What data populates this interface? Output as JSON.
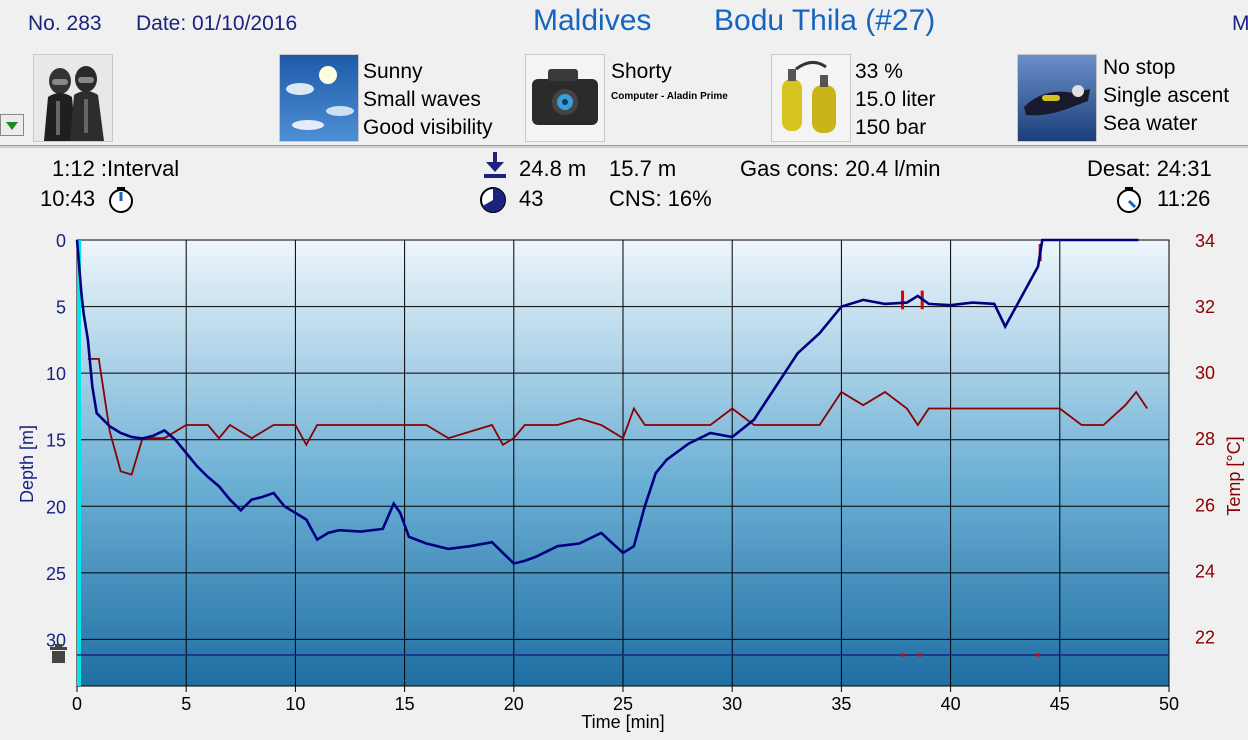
{
  "header": {
    "dive_no": "No. 283",
    "date": "Date: 01/10/2016",
    "location": "Maldives",
    "site": "Bodu Thila (#27)",
    "cut_text": "M"
  },
  "icons": {
    "divers": "divers-icon",
    "weather": "weather-icon",
    "equipment": "dive-computer-icon",
    "tank": "tank-icon",
    "dive_type": "diver-icon"
  },
  "weather": {
    "line1": "Sunny",
    "line2": "Small waves",
    "line3": "Good visibility"
  },
  "equipment": {
    "suit": "Shorty",
    "computer": "Computer - Aladin Prime"
  },
  "tank": {
    "o2": "33 %",
    "volume": "15.0 liter",
    "pressure": "150 bar"
  },
  "dive_type": {
    "line1": "No stop",
    "line2": "Single ascent",
    "line3": "Sea water"
  },
  "stats": {
    "interval": "1:12 :Interval",
    "entry_time": "10:43",
    "max_depth": "24.8 m",
    "avg_depth": "15.7 m",
    "duration": "43",
    "cns": "CNS:  16%",
    "gas_cons": "Gas cons: 20.4 l/min",
    "desat": "Desat: 24:31",
    "exit_time": "11:26"
  },
  "colors": {
    "depth": "#000080",
    "temp": "#8b0000",
    "title": "#1565c0",
    "surface_marker": "#00e5ee"
  },
  "chart_data": {
    "type": "line",
    "xlabel": "Time [min]",
    "ylabel": "Depth [m]",
    "y2label": "Temp [°C]",
    "xlim": [
      0,
      50
    ],
    "ylim": [
      0,
      33.5
    ],
    "y2lim": [
      20.5,
      34
    ],
    "x_ticks": [
      0,
      5,
      10,
      15,
      20,
      25,
      30,
      35,
      40,
      45,
      50
    ],
    "y_ticks": [
      0,
      5,
      10,
      15,
      20,
      25,
      30
    ],
    "y2_ticks": [
      22,
      24,
      26,
      28,
      30,
      32,
      34
    ],
    "grid": true,
    "series": [
      {
        "name": "Depth",
        "axis": "left",
        "x": [
          0,
          0.1,
          0.2,
          0.3,
          0.5,
          0.7,
          0.9,
          1.2,
          1.5,
          2,
          2.5,
          3,
          3.5,
          4,
          4.5,
          5,
          5.5,
          6,
          6.5,
          7,
          7.5,
          8,
          8.5,
          9,
          9.5,
          10,
          10.5,
          11,
          11.5,
          12,
          13,
          14,
          14.5,
          14.8,
          15.2,
          16,
          17,
          18,
          19,
          19.5,
          20,
          20.5,
          21,
          22,
          23,
          24,
          25,
          25.5,
          26,
          26.5,
          27,
          28,
          29,
          30,
          31,
          32,
          33,
          34,
          35,
          36,
          37,
          38,
          38.5,
          39,
          40,
          41,
          42,
          42.5,
          43,
          43.5,
          44,
          44.2,
          45,
          48.6
        ],
        "values": [
          0,
          2,
          4,
          5.5,
          7.5,
          11,
          13,
          13.5,
          14,
          14.5,
          14.8,
          14.9,
          14.7,
          14.3,
          15,
          16,
          17,
          17.8,
          18.5,
          19.5,
          20.3,
          19.5,
          19.3,
          19,
          20,
          20.5,
          21,
          22.5,
          22,
          21.8,
          21.9,
          21.7,
          19.8,
          20.5,
          22.3,
          22.8,
          23.2,
          23,
          22.7,
          23.5,
          24.3,
          24.1,
          23.8,
          23,
          22.8,
          22,
          23.5,
          23,
          20,
          17.5,
          16.5,
          15.3,
          14.5,
          14.8,
          13.5,
          11,
          8.5,
          7,
          5,
          4.5,
          4.8,
          4.7,
          4.2,
          4.8,
          4.9,
          4.7,
          4.8,
          6.5,
          5,
          3.5,
          2,
          0,
          0,
          0
        ]
      },
      {
        "name": "Temp",
        "axis": "right",
        "x": [
          0.5,
          1,
          1.5,
          2,
          2.5,
          3,
          4,
          5,
          6,
          6.5,
          7,
          8,
          9,
          10,
          10.5,
          11,
          12,
          14,
          16,
          17,
          19,
          19.5,
          20,
          20.5,
          22,
          23,
          24,
          25,
          25.5,
          26,
          27,
          29,
          30,
          31,
          32,
          33,
          34,
          35,
          36,
          37,
          38,
          38.5,
          39,
          40,
          42,
          45,
          46,
          47,
          48,
          48.5,
          49
        ],
        "values": [
          30.4,
          30.4,
          28.2,
          27,
          26.9,
          28,
          28,
          28.4,
          28.4,
          28,
          28.4,
          28,
          28.4,
          28.4,
          27.8,
          28.4,
          28.4,
          28.4,
          28.4,
          28,
          28.4,
          27.8,
          28,
          28.4,
          28.4,
          28.6,
          28.4,
          28,
          28.9,
          28.4,
          28.4,
          28.4,
          28.9,
          28.4,
          28.4,
          28.4,
          28.4,
          29.4,
          29,
          29.4,
          28.9,
          28.4,
          28.9,
          28.9,
          28.9,
          28.9,
          28.4,
          28.4,
          29,
          29.4,
          28.9
        ]
      }
    ],
    "markers": [
      {
        "label": "red-ascent-marker",
        "x": [
          37.8,
          38.7
        ]
      },
      {
        "label": "red-bottom-marker",
        "x": [
          37.8,
          38.6,
          44
        ]
      }
    ]
  }
}
